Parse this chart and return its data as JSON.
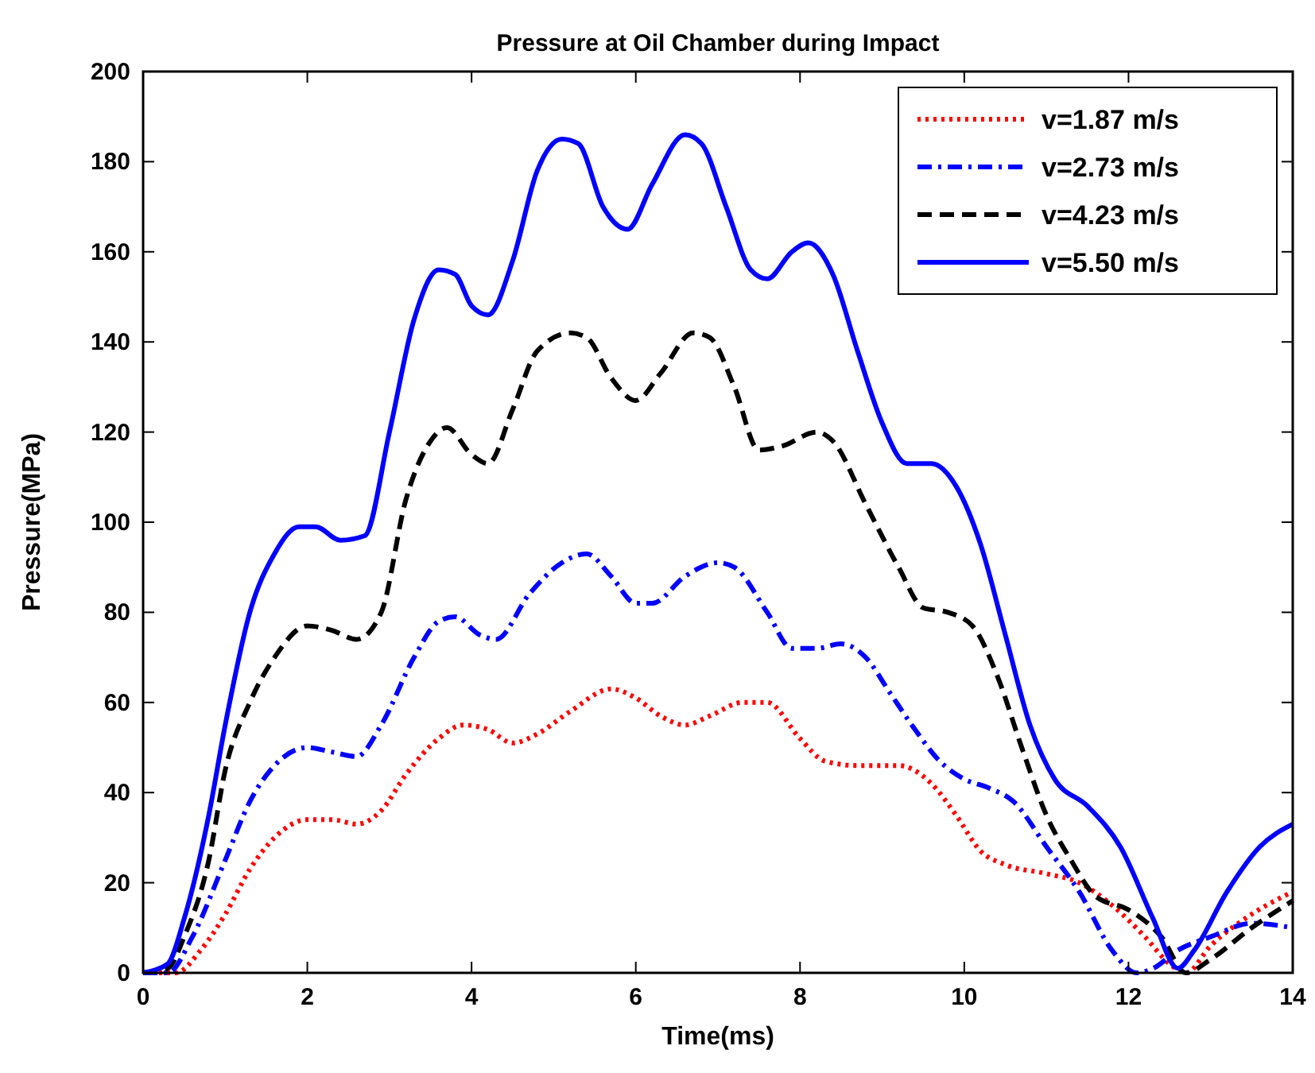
{
  "chart_data": {
    "type": "line",
    "title": "Pressure at Oil Chamber during Impact",
    "xlabel": "Time(ms)",
    "ylabel": "Pressure(MPa)",
    "xlim": [
      0,
      14
    ],
    "xticks": [
      0,
      2,
      4,
      6,
      8,
      10,
      12,
      14
    ],
    "ylim": [
      0,
      200
    ],
    "yticks": [
      0,
      20,
      40,
      60,
      80,
      100,
      120,
      140,
      160,
      180,
      200
    ],
    "grid": false,
    "legend": "top right",
    "marker": "none",
    "series": [
      {
        "name": "v=1.87 m/s",
        "color": "#ff0000",
        "line_style": "dotted",
        "x": [
          0,
          0.4,
          0.7,
          1,
          1.3,
          1.6,
          2,
          2.3,
          2.6,
          2.9,
          3.2,
          3.6,
          3.9,
          4.2,
          4.5,
          4.8,
          5.2,
          5.7,
          6,
          6.3,
          6.6,
          6.9,
          7.3,
          7.6,
          8,
          8.3,
          8.7,
          9.2,
          9.6,
          9.9,
          10.2,
          10.5,
          11,
          11.4,
          11.8,
          12.2,
          12.5,
          12.7,
          13,
          13.5,
          14
        ],
        "values": [
          0,
          0,
          5,
          13,
          23,
          30,
          34,
          34,
          33,
          36,
          44,
          52,
          55,
          54,
          51,
          53,
          58,
          63,
          61,
          57,
          55,
          57,
          60,
          60,
          52,
          47,
          46,
          46,
          42,
          35,
          27,
          24,
          22,
          20,
          15,
          8,
          2,
          0,
          6,
          13,
          18
        ]
      },
      {
        "name": "v=2.73 m/s",
        "color": "#0000ff",
        "line_style": "dashdot",
        "x": [
          0,
          0.3,
          0.6,
          1,
          1.3,
          1.6,
          2,
          2.3,
          2.6,
          2.9,
          3.3,
          3.6,
          3.8,
          4.1,
          4.3,
          4.7,
          5.1,
          5.4,
          5.7,
          6,
          6.2,
          6.6,
          7,
          7.2,
          7.6,
          7.9,
          8.2,
          8.5,
          8.8,
          9.1,
          9.4,
          9.7,
          10,
          10.3,
          10.6,
          11,
          11.4,
          11.8,
          12.1,
          12.3,
          12.6,
          13,
          13.5,
          14
        ],
        "values": [
          0,
          0,
          8,
          25,
          38,
          46,
          50,
          49,
          48,
          55,
          70,
          78,
          79,
          75,
          74,
          84,
          91,
          93,
          88,
          82,
          82,
          88,
          91,
          90,
          80,
          72,
          72,
          73,
          70,
          62,
          54,
          47,
          43,
          41,
          38,
          28,
          18,
          5,
          0,
          1,
          5,
          8,
          11,
          10
        ]
      },
      {
        "name": "v=4.23 m/s",
        "color": "#000000",
        "line_style": "dashed",
        "x": [
          0,
          0.3,
          0.5,
          0.8,
          1,
          1.3,
          1.6,
          2,
          2.3,
          2.6,
          2.9,
          3.2,
          3.5,
          3.7,
          4,
          4.2,
          4.5,
          4.8,
          5.2,
          5.4,
          5.7,
          6,
          6.3,
          6.7,
          6.9,
          7.2,
          7.5,
          7.8,
          8.2,
          8.4,
          8.8,
          9.2,
          9.5,
          9.8,
          10.1,
          10.4,
          10.7,
          11,
          11.3,
          11.6,
          12,
          12.4,
          12.7,
          13,
          13.5,
          14
        ],
        "values": [
          0,
          1,
          8,
          25,
          45,
          60,
          70,
          77,
          76,
          74,
          80,
          105,
          118,
          121,
          115,
          113,
          125,
          138,
          142,
          141,
          132,
          127,
          133,
          142,
          141,
          130,
          116,
          117,
          120,
          118,
          104,
          90,
          81,
          80,
          77,
          66,
          50,
          35,
          25,
          17,
          14,
          8,
          0,
          3,
          10,
          16
        ]
      },
      {
        "name": "v=5.50 m/s",
        "color": "#0000ff",
        "line_style": "solid",
        "x": [
          0,
          0.3,
          0.5,
          0.8,
          1,
          1.3,
          1.6,
          1.9,
          2.1,
          2.4,
          2.7,
          3,
          3.3,
          3.6,
          3.8,
          4,
          4.2,
          4.5,
          4.8,
          5.1,
          5.3,
          5.6,
          5.9,
          6.2,
          6.6,
          6.8,
          7.1,
          7.4,
          7.6,
          7.9,
          8.1,
          8.4,
          8.7,
          9,
          9.3,
          9.6,
          9.9,
          10.2,
          10.5,
          10.8,
          11.1,
          11.5,
          11.9,
          12.3,
          12.6,
          12.8,
          13.2,
          13.6,
          14
        ],
        "values": [
          0,
          2,
          12,
          35,
          55,
          80,
          93,
          99,
          99,
          96,
          97,
          120,
          145,
          156,
          155,
          148,
          146,
          158,
          178,
          185,
          184,
          170,
          165,
          175,
          186,
          184,
          170,
          156,
          154,
          160,
          162,
          155,
          138,
          122,
          113,
          113,
          108,
          95,
          75,
          55,
          43,
          37,
          28,
          12,
          1,
          5,
          18,
          28,
          33
        ]
      }
    ]
  }
}
